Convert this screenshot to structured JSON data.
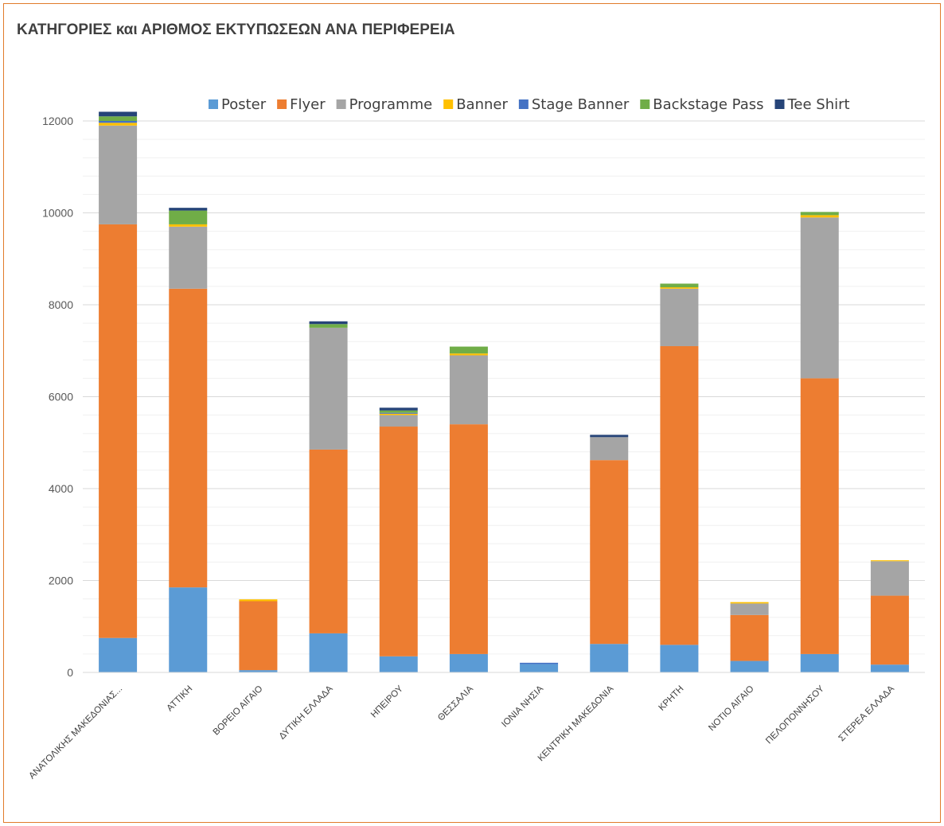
{
  "chart_data": {
    "type": "bar",
    "stacked": true,
    "title": "ΚΑΤΗΓΟΡΙΕΣ και ΑΡΙΘΜΟΣ ΕΚΤΥΠΩΣΕΩΝ ΑΝΑ ΠΕΡΙΦΕΡΕΙΑ",
    "xlabel": "",
    "ylabel": "",
    "ylim": [
      0,
      12000
    ],
    "yticks": [
      0,
      2000,
      4000,
      6000,
      8000,
      10000,
      12000
    ],
    "grid": true,
    "legend_position": "top",
    "categories": [
      "ΑΝΑΤΟΛΙΚΗΣ ΜΑΚΕΔΟΝΙΑΣ...",
      "ΑΤΤΙΚΗ",
      "ΒΟΡΕΙΟ ΑΙΓΑΙΟ",
      "ΔΥΤΙΚΗ ΕΛΛΑΔΑ",
      "ΗΠΕΙΡΟΥ",
      "ΘΕΣΣΑΛΙΑ",
      "ΙΟΝΙΑ ΝΗΣΙΑ",
      "ΚΕΝΤΡΙΚΗ ΜΑΚΕΔΟΝΙΑ",
      "ΚΡΗΤΗ",
      "ΝΟΤΙΟ ΑΙΓΑΙΟ",
      "ΠΕΛΟΠΟΝΝΗΣΟΥ",
      "ΣΤΕΡΕΑ ΕΛΛΑΔΑ"
    ],
    "series": [
      {
        "name": "Poster",
        "color": "#5b9bd5",
        "values": [
          750,
          1850,
          50,
          850,
          350,
          400,
          180,
          620,
          600,
          250,
          400,
          170
        ]
      },
      {
        "name": "Flyer",
        "color": "#ed7d31",
        "values": [
          9000,
          6500,
          1500,
          4000,
          5000,
          5000,
          0,
          4000,
          6500,
          1000,
          6000,
          1500
        ]
      },
      {
        "name": "Programme",
        "color": "#a5a5a5",
        "values": [
          2150,
          1350,
          0,
          2650,
          250,
          1500,
          0,
          500,
          1250,
          250,
          3500,
          750
        ]
      },
      {
        "name": "Banner",
        "color": "#ffc000",
        "values": [
          60,
          50,
          40,
          0,
          30,
          40,
          0,
          0,
          30,
          30,
          50,
          20
        ]
      },
      {
        "name": "Stage Banner",
        "color": "#4472c4",
        "values": [
          40,
          0,
          0,
          0,
          20,
          0,
          30,
          0,
          0,
          0,
          0,
          0
        ]
      },
      {
        "name": "Backstage Pass",
        "color": "#70ad47",
        "values": [
          100,
          300,
          0,
          80,
          50,
          150,
          0,
          0,
          80,
          0,
          70,
          0
        ]
      },
      {
        "name": "Tee Shirt",
        "color": "#264478",
        "values": [
          100,
          60,
          0,
          60,
          60,
          0,
          0,
          50,
          0,
          0,
          0,
          0
        ]
      }
    ]
  }
}
